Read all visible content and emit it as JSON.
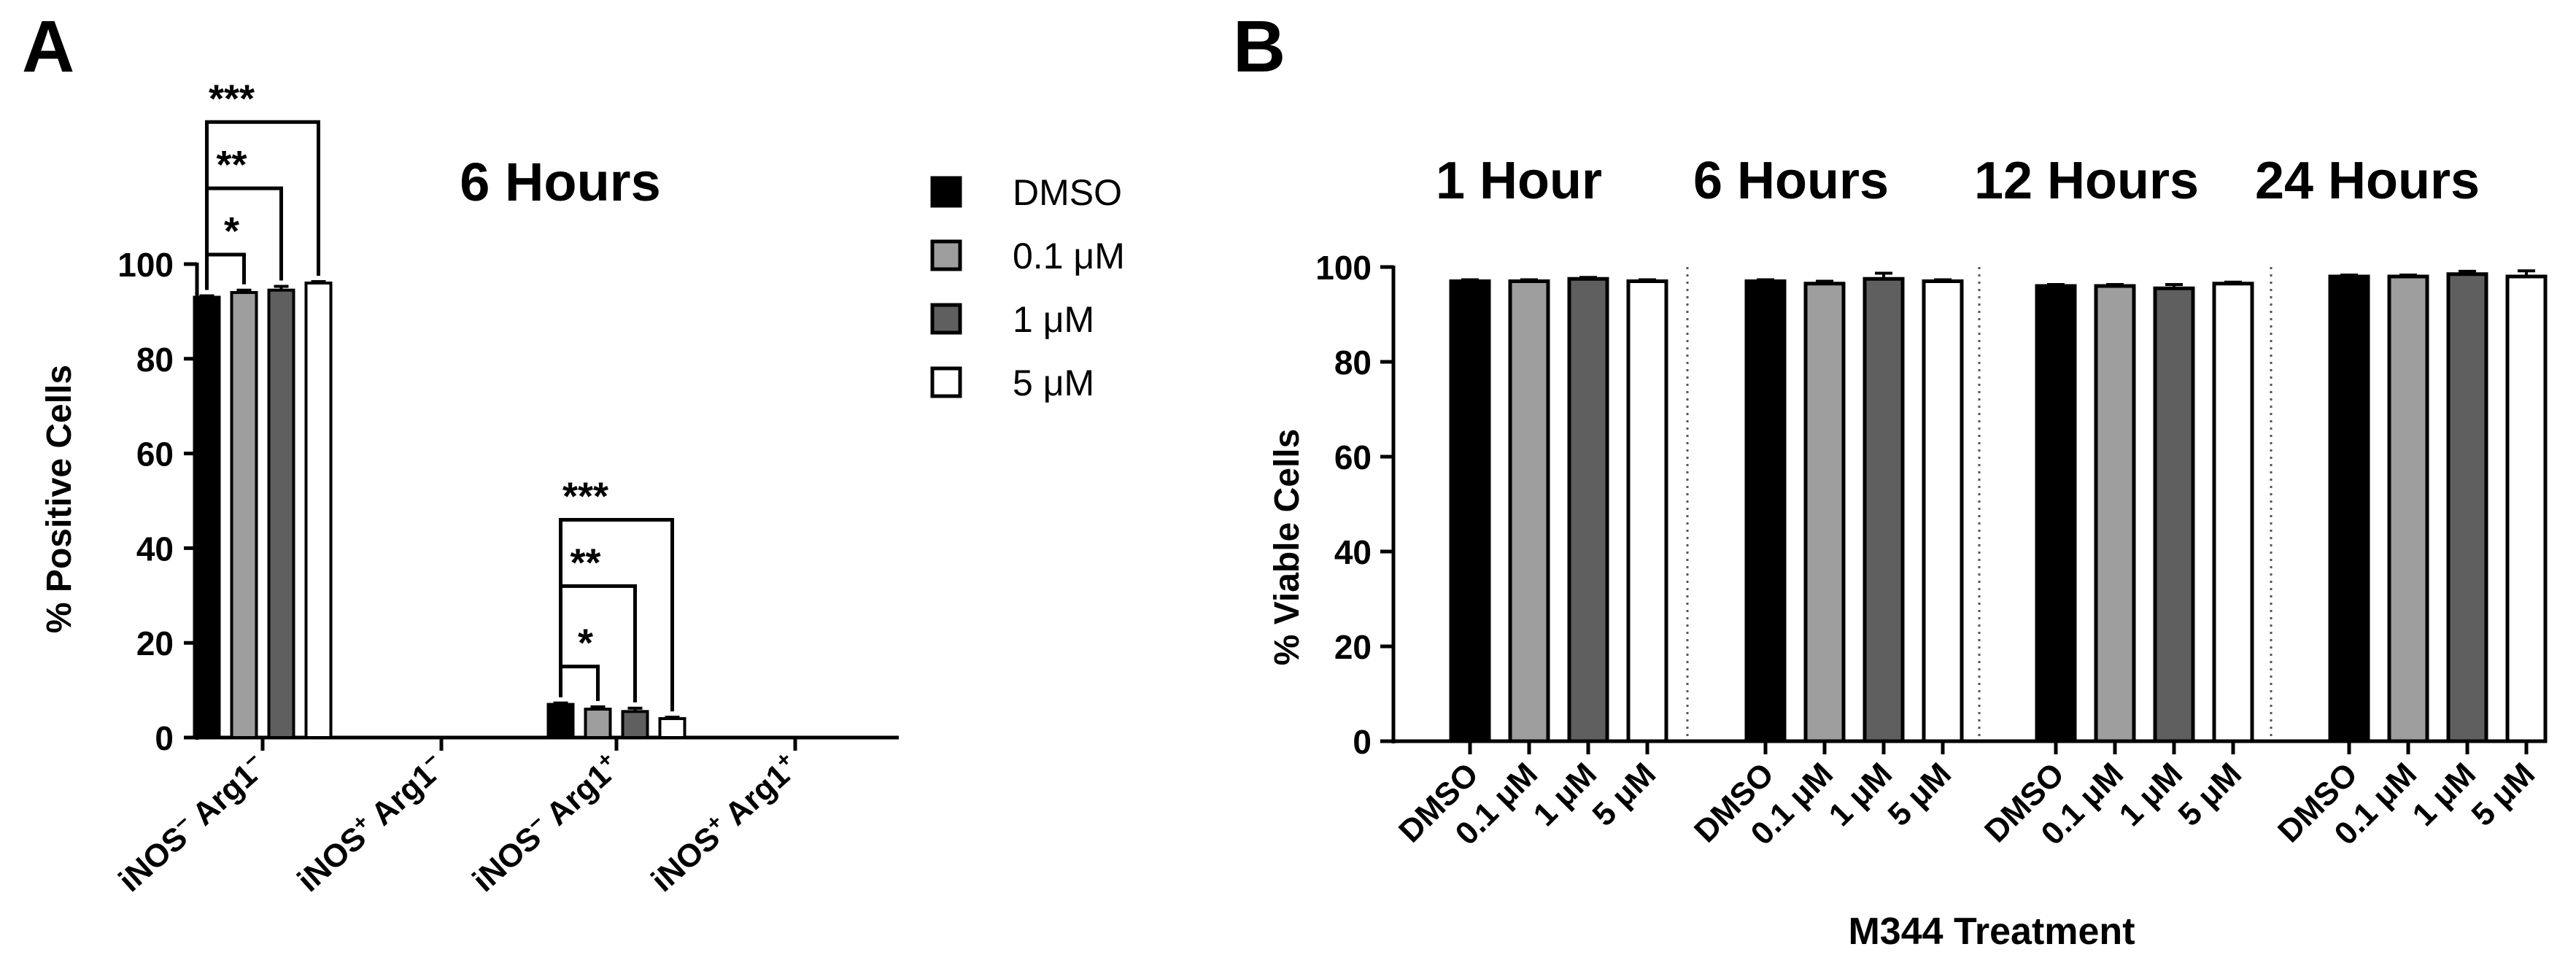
{
  "panels": {
    "a": {
      "letter": "A"
    },
    "b": {
      "letter": "B"
    }
  },
  "legend": {
    "items": [
      {
        "label": "DMSO",
        "color": "#000000"
      },
      {
        "label": "0.1 μM",
        "color": "#9e9e9e"
      },
      {
        "label": "1 μM",
        "color": "#5f5f5f"
      },
      {
        "label": "5 μM",
        "color": "#ffffff"
      }
    ]
  },
  "chart_data": [
    {
      "id": "panel-a",
      "type": "bar",
      "title": "6 Hours",
      "ylabel": "% Positive Cells",
      "xlabel": "",
      "ylim": [
        0,
        100
      ],
      "yticks": [
        0,
        20,
        40,
        60,
        80,
        100
      ],
      "grid": false,
      "legend_position": "right",
      "categories": [
        {
          "base": "iNOS",
          "sup1": "−",
          "mid": " Arg1",
          "sup2": "−"
        },
        {
          "base": "iNOS",
          "sup1": "+",
          "mid": " Arg1",
          "sup2": "−"
        },
        {
          "base": "iNOS",
          "sup1": "−",
          "mid": " Arg1",
          "sup2": "+"
        },
        {
          "base": "iNOS",
          "sup1": "+",
          "mid": " Arg1",
          "sup2": "+"
        }
      ],
      "series": [
        {
          "name": "DMSO",
          "color": "#000000",
          "values": [
            93.0,
            0,
            7.0,
            0
          ],
          "errors": [
            0.3,
            0,
            0.3,
            0
          ]
        },
        {
          "name": "0.1 μM",
          "color": "#9e9e9e",
          "values": [
            94.0,
            0,
            6.0,
            0
          ],
          "errors": [
            0.5,
            0,
            0.5,
            0
          ]
        },
        {
          "name": "1 μM",
          "color": "#5f5f5f",
          "values": [
            94.5,
            0,
            5.5,
            0
          ],
          "errors": [
            0.8,
            0,
            0.7,
            0
          ]
        },
        {
          "name": "5 μM",
          "color": "#ffffff",
          "values": [
            96.0,
            0,
            4.0,
            0
          ],
          "errors": [
            0.3,
            0,
            0.3,
            0
          ]
        }
      ],
      "significance": [
        {
          "category": 0,
          "from": 0,
          "to": 1,
          "y": 102,
          "label": "*"
        },
        {
          "category": 0,
          "from": 0,
          "to": 2,
          "y": 116,
          "label": "**"
        },
        {
          "category": 0,
          "from": 0,
          "to": 3,
          "y": 130,
          "label": "***"
        },
        {
          "category": 2,
          "from": 0,
          "to": 1,
          "y": 15,
          "label": "*"
        },
        {
          "category": 2,
          "from": 0,
          "to": 2,
          "y": 32,
          "label": "**"
        },
        {
          "category": 2,
          "from": 0,
          "to": 3,
          "y": 46,
          "label": "***"
        }
      ]
    },
    {
      "id": "panel-b",
      "type": "bar",
      "ylabel": "% Viable Cells",
      "xlabel": "M344 Treatment",
      "ylim": [
        0,
        100
      ],
      "yticks": [
        0,
        20,
        40,
        60,
        80,
        100
      ],
      "grid": false,
      "groups": [
        {
          "title": "1 Hour",
          "categories": [
            "DMSO",
            "0.1 μM",
            "1 μM",
            "5 μM"
          ],
          "values": [
            97.0,
            97.0,
            97.5,
            97.0
          ],
          "errors": [
            0.3,
            0.3,
            0.3,
            0.3
          ]
        },
        {
          "title": "6 Hours",
          "categories": [
            "DMSO",
            "0.1 μM",
            "1 μM",
            "5 μM"
          ],
          "values": [
            97.0,
            96.5,
            97.5,
            97.0
          ],
          "errors": [
            0.3,
            0.5,
            1.2,
            0.3
          ]
        },
        {
          "title": "12 Hours",
          "categories": [
            "DMSO",
            "0.1 μM",
            "1 μM",
            "5 μM"
          ],
          "values": [
            96.0,
            96.0,
            95.5,
            96.5
          ],
          "errors": [
            0.3,
            0.3,
            0.8,
            0.3
          ]
        },
        {
          "title": "24 Hours",
          "categories": [
            "DMSO",
            "0.1 μM",
            "1 μM",
            "5 μM"
          ],
          "values": [
            98.0,
            98.0,
            98.5,
            98.0
          ],
          "errors": [
            0.3,
            0.3,
            0.6,
            1.2
          ]
        }
      ],
      "colors": [
        "#000000",
        "#9e9e9e",
        "#5f5f5f",
        "#ffffff"
      ]
    }
  ]
}
